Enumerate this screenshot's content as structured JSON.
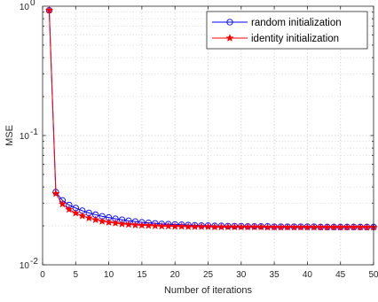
{
  "chart_data": {
    "type": "line",
    "xlabel": "Number of iterations",
    "ylabel": "MSE",
    "xlim": [
      0,
      50
    ],
    "ylim": [
      0.01,
      1
    ],
    "yscale": "log",
    "x_ticks": [
      "0",
      "5",
      "10",
      "15",
      "20",
      "25",
      "30",
      "35",
      "40",
      "45",
      "50"
    ],
    "y_ticks": [
      {
        "value": 1,
        "base": "10",
        "exp": "0"
      },
      {
        "value": 0.1,
        "base": "10",
        "exp": "-1"
      },
      {
        "value": 0.01,
        "base": "10",
        "exp": "-2"
      }
    ],
    "grid": true,
    "legend_position": "top-right",
    "x": [
      1,
      2,
      3,
      4,
      5,
      6,
      7,
      8,
      9,
      10,
      11,
      12,
      13,
      14,
      15,
      16,
      17,
      18,
      19,
      20,
      21,
      22,
      23,
      24,
      25,
      26,
      27,
      28,
      29,
      30,
      31,
      32,
      33,
      34,
      35,
      36,
      37,
      38,
      39,
      40,
      41,
      42,
      43,
      44,
      45,
      46,
      47,
      48,
      49,
      50
    ],
    "series": [
      {
        "name": "random initialization",
        "color": "#0000ff",
        "marker": "circle",
        "values": [
          0.93,
          0.0365,
          0.0315,
          0.029,
          0.0275,
          0.0262,
          0.0252,
          0.0244,
          0.0237,
          0.0232,
          0.0227,
          0.0223,
          0.0219,
          0.0216,
          0.0213,
          0.0211,
          0.0209,
          0.0207,
          0.0206,
          0.0205,
          0.0204,
          0.0203,
          0.0202,
          0.0201,
          0.0201,
          0.02,
          0.02,
          0.0199,
          0.0199,
          0.0199,
          0.0198,
          0.0198,
          0.0198,
          0.0198,
          0.0197,
          0.0197,
          0.0197,
          0.0197,
          0.0197,
          0.0197,
          0.0197,
          0.0196,
          0.0196,
          0.0196,
          0.0196,
          0.0196,
          0.0196,
          0.0196,
          0.0196,
          0.0196
        ]
      },
      {
        "name": "identity initialization",
        "color": "#ff0000",
        "marker": "star",
        "values": [
          0.93,
          0.0355,
          0.0295,
          0.0268,
          0.0251,
          0.0239,
          0.023,
          0.0223,
          0.0217,
          0.0213,
          0.021,
          0.0207,
          0.0205,
          0.0203,
          0.0202,
          0.0201,
          0.02,
          0.0199,
          0.0199,
          0.0198,
          0.0198,
          0.0197,
          0.0197,
          0.0197,
          0.0197,
          0.0196,
          0.0196,
          0.0196,
          0.0196,
          0.0196,
          0.0196,
          0.0196,
          0.0196,
          0.0195,
          0.0195,
          0.0195,
          0.0195,
          0.0195,
          0.0195,
          0.0195,
          0.0195,
          0.0195,
          0.0195,
          0.0195,
          0.0195,
          0.0195,
          0.0195,
          0.0195,
          0.0195,
          0.0195
        ]
      }
    ]
  }
}
